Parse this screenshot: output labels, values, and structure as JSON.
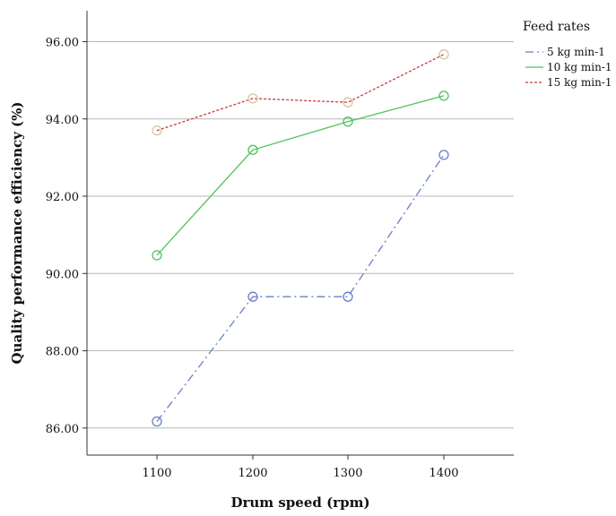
{
  "chart_data": {
    "type": "line",
    "title": "",
    "xlabel": "Drum speed (rpm)",
    "ylabel": "Quality performance efficiency (%)",
    "categories": [
      "1100",
      "1200",
      "1300",
      "1400"
    ],
    "ylim": [
      85.3,
      96.8
    ],
    "yticks": [
      "86.00",
      "88.00",
      "90.00",
      "92.00",
      "94.00",
      "96.00"
    ],
    "grid": "horizontal",
    "legend": {
      "title": "Feed rates",
      "placement": "top-right"
    },
    "series": [
      {
        "name": "5 kg min-1",
        "values": [
          86.17,
          89.4,
          89.4,
          93.07
        ],
        "color": "#6a7fc8",
        "dash": "dash-dot"
      },
      {
        "name": "10 kg min-1",
        "values": [
          90.47,
          93.2,
          93.93,
          94.6
        ],
        "color": "#4cc45c",
        "dash": "solid"
      },
      {
        "name": "15 kg min-1",
        "values": [
          93.7,
          94.53,
          94.43,
          95.67
        ],
        "color": "#cc3b3b",
        "dash": "dotted",
        "marker_color": "#d8c4a0"
      }
    ]
  }
}
